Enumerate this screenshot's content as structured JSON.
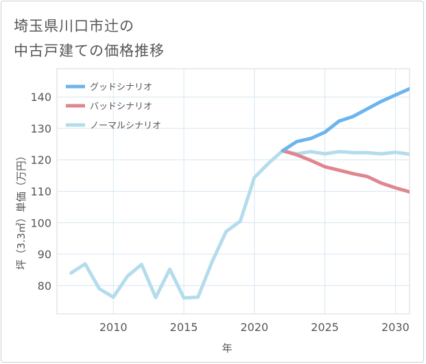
{
  "title": {
    "line1": "埼玉県川口市辻の",
    "line2": "中古戸建ての価格推移"
  },
  "chart_data": {
    "type": "line",
    "title": "埼玉県川口市辻の中古戸建ての価格推移",
    "xlabel": "年",
    "ylabel": "坪（3.3㎡）単価（万円）",
    "xlim": [
      2006,
      2031
    ],
    "ylim": [
      71,
      149
    ],
    "xticks": [
      2010,
      2015,
      2020,
      2025,
      2030
    ],
    "yticks": [
      80,
      90,
      100,
      110,
      120,
      130,
      140
    ],
    "grid": true,
    "legend_position": "top-left",
    "series": [
      {
        "name": "グッドシナリオ",
        "color": "#6cb4ee",
        "x": [
          2022,
          2023,
          2024,
          2025,
          2026,
          2027,
          2028,
          2029,
          2030,
          2031
        ],
        "values": [
          122.9,
          125.8,
          126.8,
          128.8,
          132.3,
          133.8,
          136.2,
          138.6,
          140.6,
          142.6
        ]
      },
      {
        "name": "バッドシナリオ",
        "color": "#e0868e",
        "x": [
          2022,
          2023,
          2024,
          2025,
          2026,
          2027,
          2028,
          2029,
          2030,
          2031
        ],
        "values": [
          122.9,
          121.6,
          119.8,
          117.8,
          116.7,
          115.6,
          114.7,
          112.6,
          111.1,
          109.8
        ]
      },
      {
        "name": "ノーマルシナリオ",
        "color": "#b4dcec",
        "x": [
          2007,
          2008,
          2009,
          2010,
          2011,
          2012,
          2013,
          2014,
          2015,
          2016,
          2017,
          2018,
          2019,
          2020,
          2021,
          2022,
          2023,
          2024,
          2025,
          2026,
          2027,
          2028,
          2029,
          2030,
          2031
        ],
        "values": [
          84,
          86.9,
          79,
          76.3,
          83,
          86.7,
          76.2,
          85.2,
          76.1,
          76.3,
          87.6,
          97.2,
          100.5,
          114.4,
          118.9,
          122.9,
          121.9,
          122.6,
          121.9,
          122.6,
          122.3,
          122.3,
          121.9,
          122.4,
          121.8
        ]
      }
    ]
  }
}
